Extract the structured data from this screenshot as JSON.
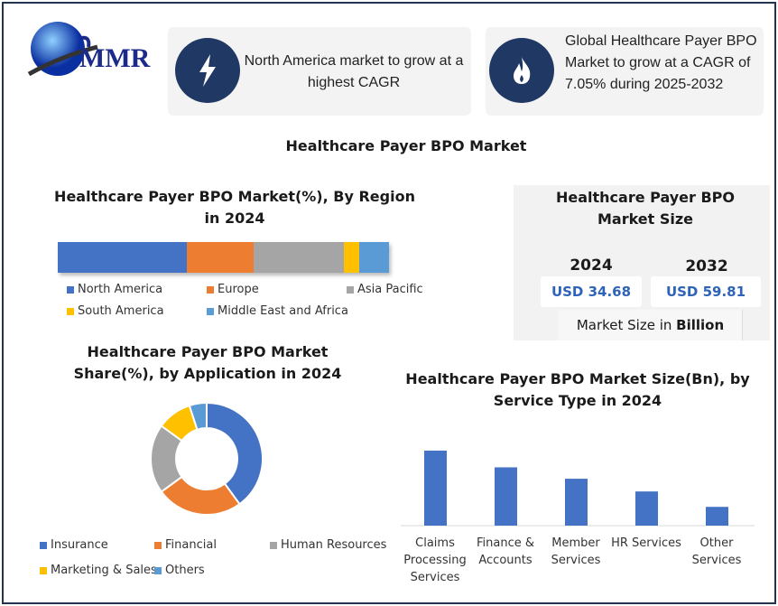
{
  "logo": {
    "text": "MMR"
  },
  "cards": [
    {
      "icon": "lightning-icon",
      "text": "North America market to grow at a highest CAGR"
    },
    {
      "icon": "flame-icon",
      "text": "Global Healthcare Payer BPO Market to grow at a CAGR of 7.05% during 2025-2032"
    }
  ],
  "page_title": "Healthcare Payer BPO Market",
  "market_size": {
    "title": "Healthcare Payer BPO Market Size",
    "years": [
      "2024",
      "2032"
    ],
    "values": [
      "USD 34.68",
      "USD 59.81"
    ],
    "unit_prefix": "Market Size in ",
    "unit": "Billion"
  },
  "colors": {
    "blue": "#4472c4",
    "orange": "#ed7d31",
    "gray": "#a5a5a5",
    "yellow": "#ffc000",
    "lightblue": "#5b9bd5",
    "navy": "#1f3864"
  },
  "chart_data": [
    {
      "type": "bar",
      "stacked": true,
      "orientation": "horizontal",
      "title": "Healthcare Payer BPO Market(%), By Region in 2024",
      "categories": [
        "North America",
        "Europe",
        "Asia Pacific",
        "South America",
        "Middle East and Africa"
      ],
      "values": [
        39,
        20,
        27.5,
        4.5,
        9
      ],
      "legend": "bottom"
    },
    {
      "type": "pie",
      "donut": true,
      "title": "Healthcare Payer BPO Market Share(%), by Application in 2024",
      "categories": [
        "Insurance",
        "Financial",
        "Human Resources",
        "Marketing & Sales",
        "Others"
      ],
      "values": [
        40,
        25,
        20,
        10,
        5
      ],
      "legend": "bottom"
    },
    {
      "type": "bar",
      "title": "Healthcare Payer BPO Market Size(Bn), by Service Type in 2024",
      "categories": [
        "Claims Processing Services",
        "Finance & Accounts",
        "Member Services",
        "HR Services",
        "Other Services"
      ],
      "values": [
        11.2,
        8.7,
        7.0,
        5.1,
        2.8
      ],
      "grid": false
    }
  ]
}
